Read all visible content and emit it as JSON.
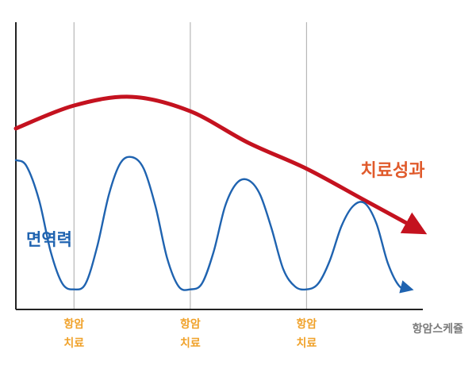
{
  "chart_data": {
    "type": "line",
    "xlabel": "항암스케쥴",
    "ylabel": "",
    "xlim": [
      0,
      35
    ],
    "ylim": [
      0,
      100
    ],
    "grid_x": true,
    "grid_y": false,
    "ticks": [
      {
        "x": 5,
        "line1": "항암",
        "line2": "치료"
      },
      {
        "x": 15,
        "line1": "항암",
        "line2": "치료"
      },
      {
        "x": 25,
        "line1": "항암",
        "line2": "치료"
      }
    ],
    "series": [
      {
        "name": "치료성과",
        "color": "#c4121f",
        "label_color": "#e05a2b",
        "x": [
          0,
          5,
          10,
          15,
          20,
          25,
          30,
          35
        ],
        "y": [
          63,
          71,
          74,
          69,
          58,
          49,
          38,
          27
        ]
      },
      {
        "name": "면역력",
        "color": "#1f63b0",
        "label_color": "#1f63b0",
        "x": [
          0,
          0.9,
          2,
          3,
          4,
          5,
          6,
          7,
          8,
          9,
          10,
          11,
          12,
          13,
          14,
          15,
          16,
          17,
          18,
          19,
          20,
          21,
          22,
          23,
          24,
          25,
          26,
          27,
          28,
          29,
          30,
          31,
          32,
          33,
          34
        ],
        "y": [
          52,
          50,
          38,
          20,
          9,
          7,
          9,
          22,
          40,
          51,
          53,
          49,
          36,
          18,
          8,
          7,
          9,
          20,
          36,
          44,
          45,
          40,
          28,
          14,
          8,
          7,
          9,
          17,
          29,
          36,
          37,
          30,
          16,
          8,
          7
        ]
      }
    ]
  }
}
